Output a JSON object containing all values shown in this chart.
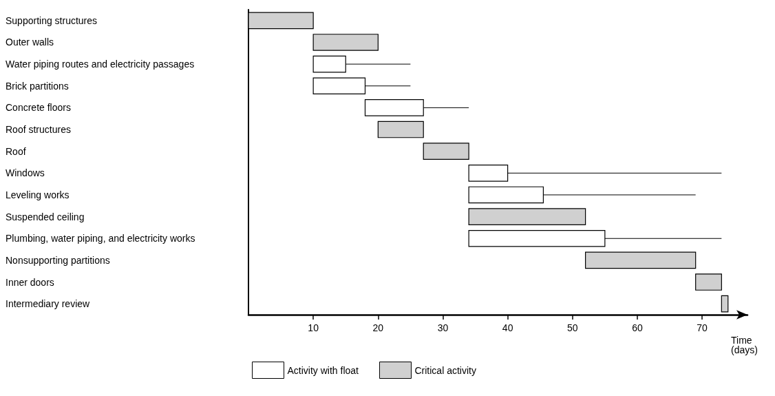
{
  "chart_data": {
    "type": "bar",
    "orientation": "horizontal",
    "xlabel": "Time\n(days)",
    "categories": [
      "Supporting structures",
      "Outer walls",
      "Water piping routes and electricity passages",
      "Brick partitions",
      "Concrete floors",
      "Roof structures",
      "Roof",
      "Windows",
      "Leveling works",
      "Suspended ceiling",
      "Plumbing, water piping, and electricity works",
      "Nonsupporting partitions",
      "Inner doors",
      "Intermediary review"
    ],
    "series": [
      {
        "name": "Activity with float",
        "color": "#ffffff",
        "base": [
          null,
          null,
          10,
          10,
          18,
          null,
          null,
          34,
          34,
          null,
          34,
          null,
          null,
          null
        ],
        "values": [
          null,
          null,
          5,
          8,
          9,
          null,
          null,
          6,
          11.5,
          null,
          21,
          null,
          null,
          null
        ],
        "errors": [
          null,
          null,
          [
            15,
            25
          ],
          [
            18,
            25
          ],
          [
            27,
            34
          ],
          null,
          null,
          [
            40,
            73
          ],
          [
            45.5,
            69
          ],
          null,
          [
            55,
            73
          ],
          null,
          null,
          null
        ]
      },
      {
        "name": "Critical activity",
        "color": "#d0d0d0",
        "base": [
          0,
          10,
          null,
          null,
          null,
          20,
          27,
          null,
          null,
          34,
          null,
          52,
          69,
          73
        ],
        "values": [
          10,
          10,
          null,
          null,
          null,
          7,
          7,
          null,
          null,
          18,
          null,
          17,
          4,
          1
        ]
      }
    ],
    "xlim": [
      0,
      77
    ],
    "xticks": [
      10,
      20,
      30,
      40,
      50,
      60,
      70
    ],
    "grid": false,
    "legend": "bottom left"
  }
}
